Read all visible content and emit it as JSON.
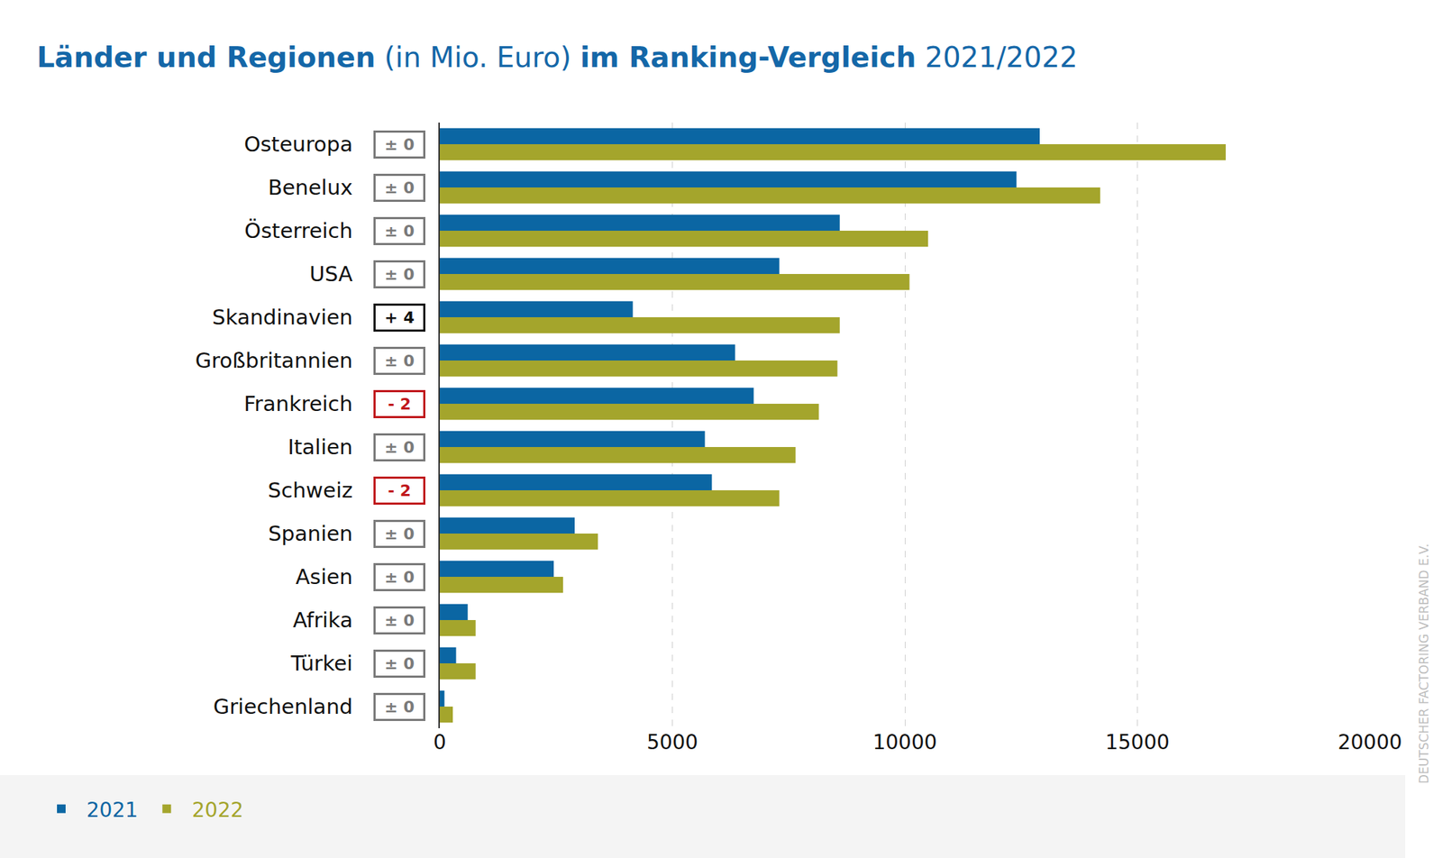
{
  "chart_data": {
    "type": "bar",
    "orientation": "horizontal",
    "title": "Länder und Regionen (in Mio. Euro) im Ranking-Vergleich 2021/2022",
    "categories": [
      "Osteuropa",
      "Benelux",
      "Österreich",
      "USA",
      "Skandinavien",
      "Großbritannien",
      "Frankreich",
      "Italien",
      "Schweiz",
      "Spanien",
      "Asien",
      "Afrika",
      "Türkei",
      "Griechenland"
    ],
    "series": [
      {
        "name": "2021",
        "color": "#0b66a3",
        "values": [
          12900,
          12400,
          8600,
          7300,
          4150,
          6350,
          6750,
          5700,
          5850,
          2900,
          2450,
          600,
          350,
          100
        ]
      },
      {
        "name": "2022",
        "color": "#a4a52c",
        "values": [
          16900,
          14200,
          10500,
          10100,
          8600,
          8550,
          8150,
          7650,
          7300,
          3400,
          2650,
          770,
          770,
          280
        ]
      }
    ],
    "rank_change": [
      "± 0",
      "± 0",
      "± 0",
      "± 0",
      "+ 4",
      "± 0",
      "- 2",
      "± 0",
      "- 2",
      "± 0",
      "± 0",
      "± 0",
      "± 0",
      "± 0"
    ],
    "xlim": [
      0,
      20000
    ],
    "xticks": [
      0,
      5000,
      10000,
      15000,
      20000
    ],
    "grid": true,
    "legend": "bottom left",
    "source": "DEUTSCHER FACTORING VERBAND E.V."
  }
}
